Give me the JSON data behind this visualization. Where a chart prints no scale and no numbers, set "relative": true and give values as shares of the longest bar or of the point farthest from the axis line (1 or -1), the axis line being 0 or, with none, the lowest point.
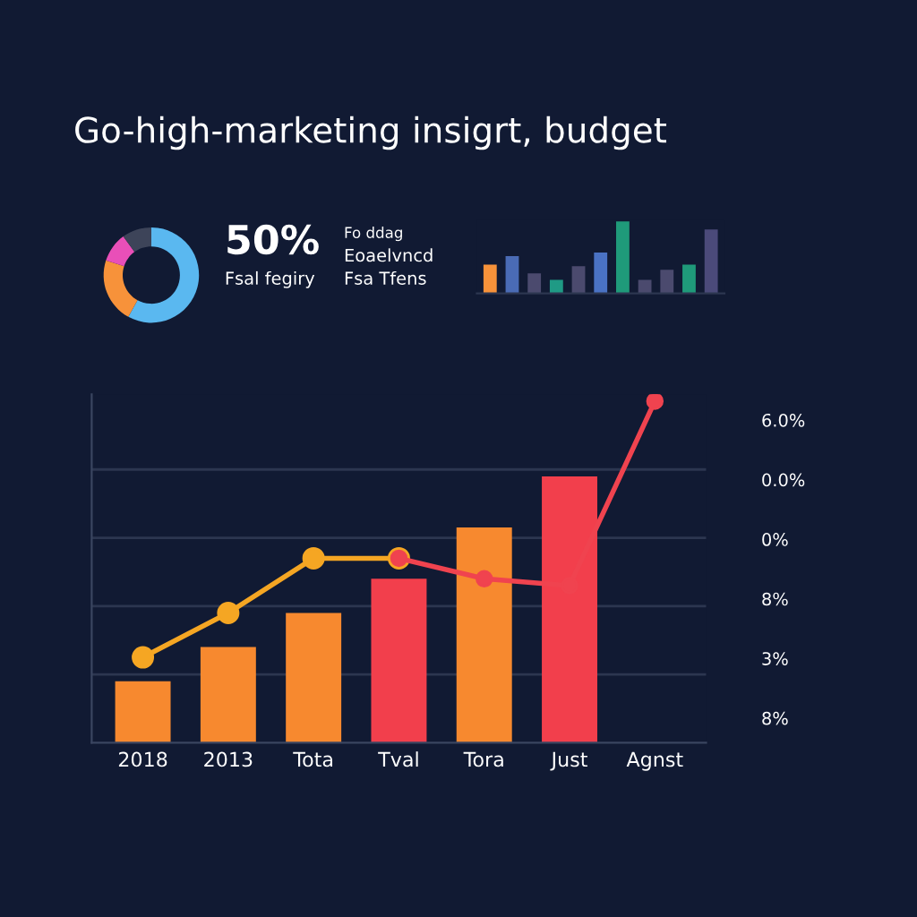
{
  "chart_data": [
    {
      "type": "donut",
      "title": "Go-high-marketing insigrt, budget",
      "categories": [
        null,
        null,
        null,
        null
      ],
      "values": [
        58,
        22,
        10,
        10
      ],
      "colors": [
        "#5ab8f0",
        "#f7923a",
        "#e94fb8",
        "#3d4459"
      ],
      "annotations": [
        "50%",
        "Fsal fegiry",
        "Fo ddag",
        "Eoaelvncd",
        "Fsa Tfens"
      ]
    },
    {
      "type": "bar",
      "relative": true,
      "categories": [
        null,
        null,
        null,
        null,
        null,
        null,
        null,
        null,
        null,
        null,
        null
      ],
      "values": [
        0.4,
        0.52,
        0.28,
        0.19,
        0.38,
        0.57,
        1.0,
        0.19,
        0.33,
        0.4,
        0.89
      ],
      "colors": [
        "#f7923a",
        "#4a6bb5",
        "#4b4a6e",
        "#1f9a85",
        "#4b4a6e",
        "#4a72c4",
        "#1f9a7a",
        "#4b4a6e",
        "#4b4a6e",
        "#1f9a7a",
        "#4b4a7a"
      ]
    },
    {
      "type": "bar",
      "relative": true,
      "grid": "y",
      "marker": "circle",
      "categories": [
        "2018",
        "2013",
        "Tota",
        "Tval",
        "Tora",
        "Just",
        "Agnst"
      ],
      "series": [
        {
          "type": "bar",
          "colors": [
            "#f7892f",
            "#f7892f",
            "#f7892f",
            "#f23f4c",
            "#f7892f",
            "#f23f4c",
            null
          ],
          "values": [
            0.18,
            0.28,
            0.38,
            0.48,
            0.63,
            0.78,
            null
          ]
        },
        {
          "type": "line",
          "color": "#f5a623",
          "values": [
            0.25,
            0.38,
            0.54,
            0.54,
            null,
            null,
            null
          ]
        },
        {
          "type": "line",
          "color": "#f0434f",
          "values": [
            null,
            null,
            null,
            0.54,
            0.48,
            0.46,
            1.0
          ]
        }
      ],
      "annotations": [
        "6.0%",
        "0.0%",
        "0%",
        "8%",
        "3%",
        "8%"
      ]
    }
  ]
}
